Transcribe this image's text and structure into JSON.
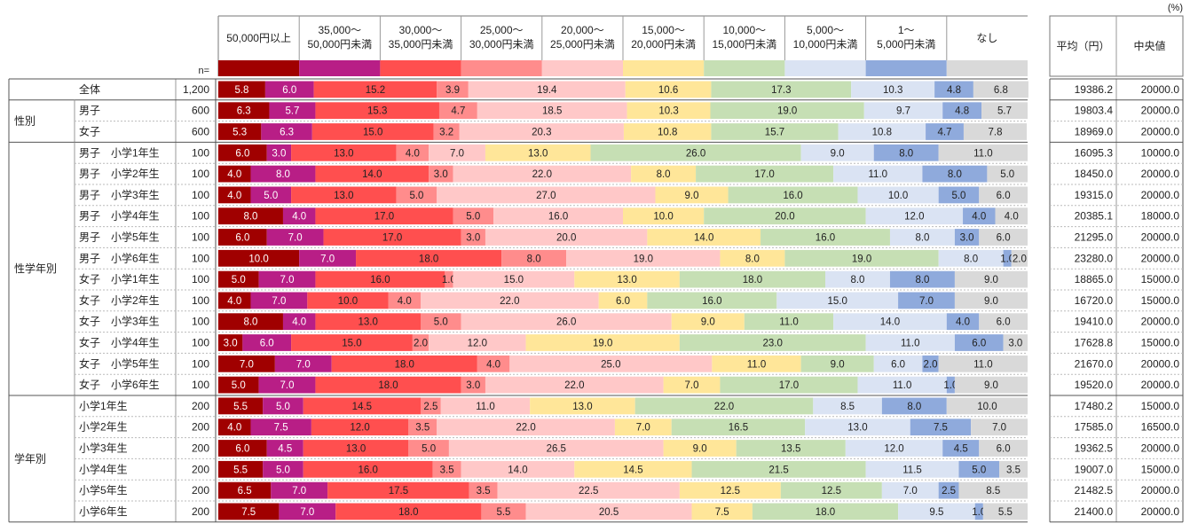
{
  "unit_note": "(%)",
  "n_label": "n=",
  "mean_header": "平均（円）",
  "median_header": "中央値",
  "categories": [
    {
      "line1": "50,000円以上",
      "line2": "",
      "color": "#A00000"
    },
    {
      "line1": "35,000～",
      "line2": "50,000円未満",
      "color": "#B81E86"
    },
    {
      "line1": "30,000～",
      "line2": "35,000円未満",
      "color": "#FF4F4F"
    },
    {
      "line1": "25,000～",
      "line2": "30,000円未満",
      "color": "#FF8C8C"
    },
    {
      "line1": "20,000～",
      "line2": "25,000円未満",
      "color": "#FFC8C8"
    },
    {
      "line1": "15,000～",
      "line2": "20,000円未満",
      "color": "#FFE699"
    },
    {
      "line1": "10,000～",
      "line2": "15,000円未満",
      "color": "#C6DFB4"
    },
    {
      "line1": "5,000～",
      "line2": "10,000円未満",
      "color": "#DAE3F3"
    },
    {
      "line1": "1～",
      "line2": "5,000円未満",
      "color": "#8FAADC"
    },
    {
      "line1": "なし",
      "line2": "",
      "color": "#D9D9D9"
    }
  ],
  "groups": [
    {
      "label": "",
      "start": 0,
      "end": 0
    },
    {
      "label": "性別",
      "start": 1,
      "end": 2
    },
    {
      "label": "性学年別",
      "start": 3,
      "end": 14
    },
    {
      "label": "学年別",
      "start": 15,
      "end": 20
    }
  ],
  "chart_data": {
    "type": "bar",
    "stacked": true,
    "orientation": "horizontal",
    "xlim": [
      0,
      100
    ],
    "series_names": [
      "50,000円以上",
      "35,000～50,000円未満",
      "30,000～35,000円未満",
      "25,000～30,000円未満",
      "20,000～25,000円未満",
      "15,000～20,000円未満",
      "10,000～15,000円未満",
      "5,000～10,000円未満",
      "1～5,000円未満",
      "なし"
    ],
    "rows": [
      {
        "label": "全体",
        "n": "1,200",
        "values": [
          5.8,
          6.0,
          15.2,
          3.9,
          19.4,
          10.6,
          17.3,
          10.3,
          4.8,
          6.8
        ],
        "mean": "19386.2",
        "median": "20000.0"
      },
      {
        "label": "男子",
        "n": "600",
        "values": [
          6.3,
          5.7,
          15.3,
          4.7,
          18.5,
          10.3,
          19.0,
          9.7,
          4.8,
          5.7
        ],
        "mean": "19803.4",
        "median": "20000.0"
      },
      {
        "label": "女子",
        "n": "600",
        "values": [
          5.3,
          6.3,
          15.0,
          3.2,
          20.3,
          10.8,
          15.7,
          10.8,
          4.7,
          7.8
        ],
        "mean": "18969.0",
        "median": "20000.0"
      },
      {
        "label": "男子　小学1年生",
        "n": "100",
        "values": [
          6.0,
          3.0,
          13.0,
          4.0,
          7.0,
          13.0,
          26.0,
          9.0,
          8.0,
          11.0
        ],
        "mean": "16095.3",
        "median": "10000.0"
      },
      {
        "label": "男子　小学2年生",
        "n": "100",
        "values": [
          4.0,
          8.0,
          14.0,
          3.0,
          22.0,
          8.0,
          17.0,
          11.0,
          8.0,
          5.0
        ],
        "mean": "18450.0",
        "median": "20000.0"
      },
      {
        "label": "男子　小学3年生",
        "n": "100",
        "values": [
          4.0,
          5.0,
          13.0,
          5.0,
          27.0,
          9.0,
          16.0,
          10.0,
          5.0,
          6.0
        ],
        "mean": "19315.0",
        "median": "20000.0"
      },
      {
        "label": "男子　小学4年生",
        "n": "100",
        "values": [
          8.0,
          4.0,
          17.0,
          5.0,
          16.0,
          10.0,
          20.0,
          12.0,
          4.0,
          4.0
        ],
        "mean": "20385.1",
        "median": "18000.0"
      },
      {
        "label": "男子　小学5年生",
        "n": "100",
        "values": [
          6.0,
          7.0,
          17.0,
          3.0,
          20.0,
          14.0,
          16.0,
          8.0,
          3.0,
          6.0
        ],
        "mean": "21295.0",
        "median": "20000.0"
      },
      {
        "label": "男子　小学6年生",
        "n": "100",
        "values": [
          10.0,
          7.0,
          18.0,
          8.0,
          19.0,
          8.0,
          19.0,
          8.0,
          1.0,
          2.0
        ],
        "mean": "23280.0",
        "median": "20000.0"
      },
      {
        "label": "女子　小学1年生",
        "n": "100",
        "values": [
          5.0,
          7.0,
          16.0,
          1.0,
          15.0,
          13.0,
          18.0,
          8.0,
          8.0,
          9.0
        ],
        "mean": "18865.0",
        "median": "15000.0"
      },
      {
        "label": "女子　小学2年生",
        "n": "100",
        "values": [
          4.0,
          7.0,
          10.0,
          4.0,
          22.0,
          6.0,
          16.0,
          15.0,
          7.0,
          9.0
        ],
        "mean": "16720.0",
        "median": "15000.0"
      },
      {
        "label": "女子　小学3年生",
        "n": "100",
        "values": [
          8.0,
          4.0,
          13.0,
          5.0,
          26.0,
          9.0,
          11.0,
          14.0,
          4.0,
          6.0
        ],
        "mean": "19410.0",
        "median": "20000.0"
      },
      {
        "label": "女子　小学4年生",
        "n": "100",
        "values": [
          3.0,
          6.0,
          15.0,
          2.0,
          12.0,
          19.0,
          23.0,
          11.0,
          6.0,
          3.0
        ],
        "mean": "17628.8",
        "median": "15000.0"
      },
      {
        "label": "女子　小学5年生",
        "n": "100",
        "values": [
          7.0,
          7.0,
          18.0,
          4.0,
          25.0,
          11.0,
          9.0,
          6.0,
          2.0,
          11.0
        ],
        "mean": "21670.0",
        "median": "20000.0"
      },
      {
        "label": "女子　小学6年生",
        "n": "100",
        "values": [
          5.0,
          7.0,
          18.0,
          3.0,
          22.0,
          7.0,
          17.0,
          11.0,
          1.0,
          9.0
        ],
        "mean": "19520.0",
        "median": "20000.0"
      },
      {
        "label": "小学1年生",
        "n": "200",
        "values": [
          5.5,
          5.0,
          14.5,
          2.5,
          11.0,
          13.0,
          22.0,
          8.5,
          8.0,
          10.0
        ],
        "mean": "17480.2",
        "median": "15000.0"
      },
      {
        "label": "小学2年生",
        "n": "200",
        "values": [
          4.0,
          7.5,
          12.0,
          3.5,
          22.0,
          7.0,
          16.5,
          13.0,
          7.5,
          7.0
        ],
        "mean": "17585.0",
        "median": "16500.0"
      },
      {
        "label": "小学3年生",
        "n": "200",
        "values": [
          6.0,
          4.5,
          13.0,
          5.0,
          26.5,
          9.0,
          13.5,
          12.0,
          4.5,
          6.0
        ],
        "mean": "19362.5",
        "median": "20000.0"
      },
      {
        "label": "小学4年生",
        "n": "200",
        "values": [
          5.5,
          5.0,
          16.0,
          3.5,
          14.0,
          14.5,
          21.5,
          11.5,
          5.0,
          3.5
        ],
        "mean": "19007.0",
        "median": "15000.0"
      },
      {
        "label": "小学5年生",
        "n": "200",
        "values": [
          6.5,
          7.0,
          17.5,
          3.5,
          22.5,
          12.5,
          12.5,
          7.0,
          2.5,
          8.5
        ],
        "mean": "21482.5",
        "median": "20000.0"
      },
      {
        "label": "小学6年生",
        "n": "200",
        "values": [
          7.5,
          7.0,
          18.0,
          5.5,
          20.5,
          7.5,
          18.0,
          9.5,
          1.0,
          5.5
        ],
        "mean": "21400.0",
        "median": "20000.0"
      }
    ]
  }
}
